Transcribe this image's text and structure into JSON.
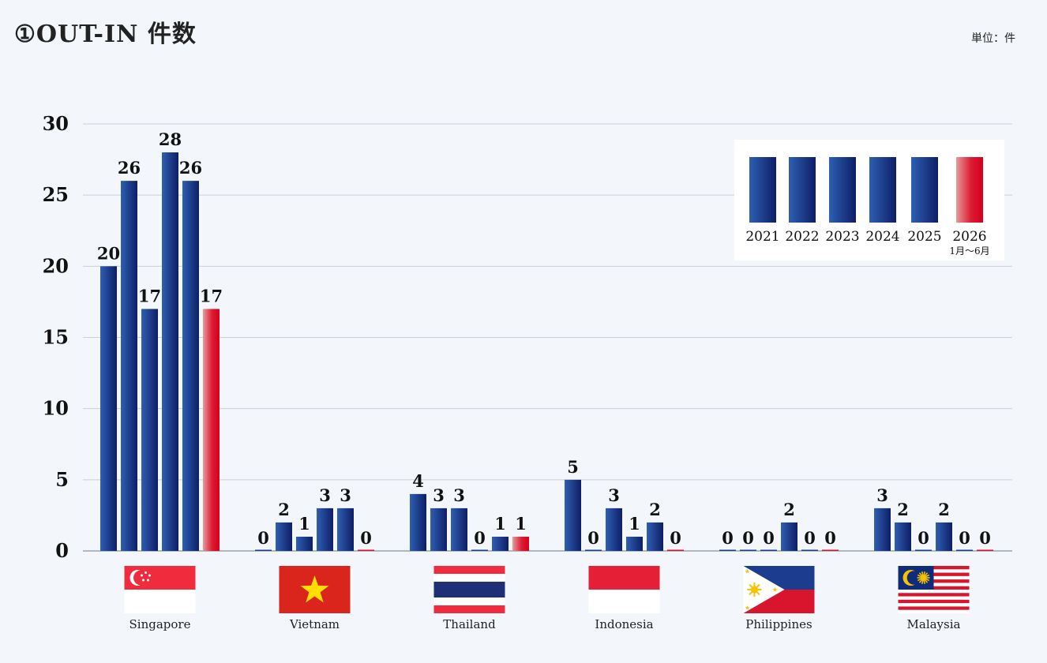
{
  "title": "①OUT-IN 件数",
  "unit_label": "単位：件",
  "chart_data": {
    "type": "bar",
    "title": "①OUT-IN 件数",
    "xlabel": "",
    "ylabel": "",
    "ylim": [
      0,
      30
    ],
    "yticks": [
      0,
      5,
      10,
      15,
      20,
      25,
      30
    ],
    "grid": true,
    "legend_position": "top-right",
    "categories": [
      "Singapore",
      "Vietnam",
      "Thailand",
      "Indonesia",
      "Philippines",
      "Malaysia"
    ],
    "series": [
      {
        "name": "2021",
        "sub": "",
        "color": "#1b3f8f",
        "values": [
          20,
          0,
          4,
          5,
          0,
          3
        ]
      },
      {
        "name": "2022",
        "sub": "",
        "color": "#1b3f8f",
        "values": [
          26,
          2,
          3,
          0,
          0,
          2
        ]
      },
      {
        "name": "2023",
        "sub": "",
        "color": "#1b3f8f",
        "values": [
          17,
          1,
          3,
          3,
          0,
          0
        ]
      },
      {
        "name": "2024",
        "sub": "",
        "color": "#1b3f8f",
        "values": [
          28,
          3,
          0,
          1,
          2,
          2
        ]
      },
      {
        "name": "2025",
        "sub": "",
        "color": "#1b3f8f",
        "values": [
          26,
          3,
          1,
          2,
          0,
          0
        ]
      },
      {
        "name": "2026",
        "sub": "1月〜6月",
        "color": "#d7102a",
        "values": [
          17,
          0,
          1,
          0,
          0,
          0
        ]
      }
    ]
  },
  "flags": [
    {
      "country": "Singapore",
      "icon": "singapore-flag-icon"
    },
    {
      "country": "Vietnam",
      "icon": "vietnam-flag-icon"
    },
    {
      "country": "Thailand",
      "icon": "thailand-flag-icon"
    },
    {
      "country": "Indonesia",
      "icon": "indonesia-flag-icon"
    },
    {
      "country": "Philippines",
      "icon": "philippines-flag-icon"
    },
    {
      "country": "Malaysia",
      "icon": "malaysia-flag-icon"
    }
  ]
}
